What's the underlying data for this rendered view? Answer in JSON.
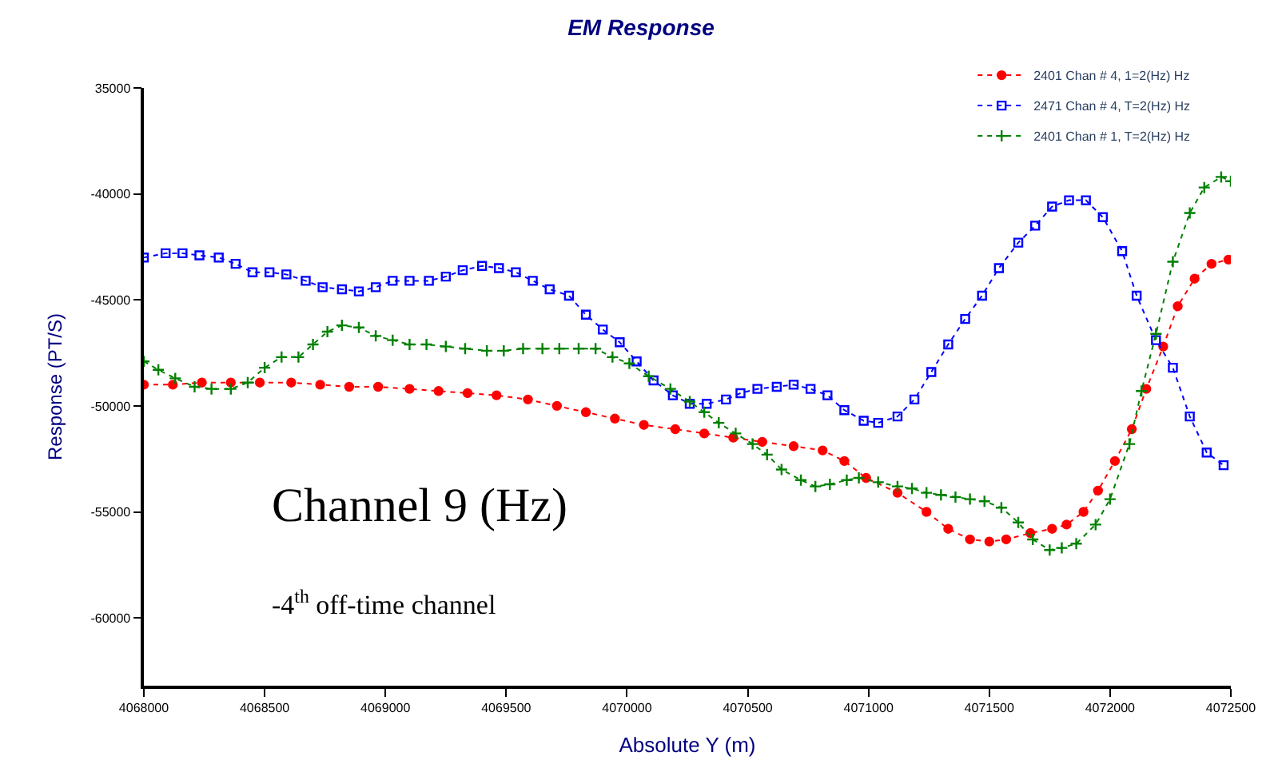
{
  "chart_data": {
    "type": "line",
    "title": "EM Response",
    "xlabel": "Absolute Y (m)",
    "ylabel": "Response (PT/S)",
    "xlim": [
      4068000,
      4072500
    ],
    "xticks": [
      4068000,
      4068500,
      4069000,
      4069500,
      4070000,
      4070500,
      4071000,
      4071500,
      4072000,
      4072500
    ],
    "ylim": [
      -63200,
      -35000
    ],
    "yticks": [
      {
        "value": -35000,
        "label": "35000"
      },
      -40000,
      -45000,
      -50000,
      -55000,
      -60000
    ],
    "legend": "top right",
    "line_style": "dotted",
    "annotations": [
      "Channel 9 (Hz)",
      "-4$^{th}$ off-time channel"
    ],
    "series": [
      {
        "name": "2401 Chan # 4, 1=2(Hz) Hz",
        "color": "#ff0000",
        "marker": "circle",
        "x": [
          4068000,
          4068120,
          4068240,
          4068360,
          4068480,
          4068610,
          4068730,
          4068850,
          4068970,
          4069100,
          4069220,
          4069340,
          4069460,
          4069590,
          4069710,
          4069830,
          4069950,
          4070070,
          4070200,
          4070320,
          4070440,
          4070560,
          4070690,
          4070810,
          4070900,
          4070990,
          4071120,
          4071240,
          4071330,
          4071420,
          4071500,
          4071570,
          4071670,
          4071760,
          4071820,
          4071890,
          4071950,
          4072020,
          4072090,
          4072150,
          4072220,
          4072280,
          4072350,
          4072420,
          4072490
        ],
        "values": [
          -49000,
          -49000,
          -48900,
          -48900,
          -48900,
          -48900,
          -49000,
          -49100,
          -49100,
          -49200,
          -49300,
          -49400,
          -49500,
          -49700,
          -50000,
          -50300,
          -50600,
          -50900,
          -51100,
          -51300,
          -51500,
          -51700,
          -51900,
          -52100,
          -52600,
          -53400,
          -54100,
          -55000,
          -55800,
          -56300,
          -56400,
          -56300,
          -56000,
          -55800,
          -55600,
          -55000,
          -54000,
          -52600,
          -51100,
          -49200,
          -47200,
          -45300,
          -44000,
          -43300,
          -43100
        ]
      },
      {
        "name": "2471 Chan # 4, T=2(Hz) Hz",
        "color": "#0000ff",
        "marker": "square",
        "x": [
          4068000,
          4068090,
          4068160,
          4068230,
          4068310,
          4068380,
          4068450,
          4068520,
          4068590,
          4068670,
          4068740,
          4068820,
          4068890,
          4068960,
          4069030,
          4069100,
          4069180,
          4069250,
          4069320,
          4069400,
          4069470,
          4069540,
          4069610,
          4069680,
          4069760,
          4069830,
          4069900,
          4069970,
          4070040,
          4070110,
          4070190,
          4070260,
          4070330,
          4070410,
          4070470,
          4070540,
          4070620,
          4070690,
          4070760,
          4070830,
          4070900,
          4070980,
          4071040,
          4071120,
          4071190,
          4071260,
          4071330,
          4071400,
          4071470,
          4071540,
          4071620,
          4071690,
          4071760,
          4071830,
          4071900,
          4071970,
          4072050,
          4072110,
          4072190,
          4072260,
          4072330,
          4072400,
          4072470
        ],
        "values": [
          -43000,
          -42800,
          -42800,
          -42900,
          -43000,
          -43300,
          -43700,
          -43700,
          -43800,
          -44100,
          -44400,
          -44500,
          -44600,
          -44400,
          -44100,
          -44100,
          -44100,
          -43900,
          -43600,
          -43400,
          -43500,
          -43700,
          -44100,
          -44500,
          -44800,
          -45700,
          -46400,
          -47000,
          -47900,
          -48800,
          -49500,
          -49900,
          -49900,
          -49700,
          -49400,
          -49200,
          -49100,
          -49000,
          -49200,
          -49500,
          -50200,
          -50700,
          -50800,
          -50500,
          -49700,
          -48400,
          -47100,
          -45900,
          -44800,
          -43500,
          -42300,
          -41500,
          -40600,
          -40300,
          -40300,
          -41100,
          -42700,
          -44800,
          -46900,
          -48200,
          -50500,
          -52200,
          -52800
        ]
      },
      {
        "name": "2401 Chan # 1, T=2(Hz) Hz",
        "color": "#008000",
        "marker": "cross",
        "x": [
          4068000,
          4068060,
          4068130,
          4068210,
          4068280,
          4068360,
          4068430,
          4068500,
          4068570,
          4068640,
          4068700,
          4068760,
          4068820,
          4068890,
          4068960,
          4069030,
          4069100,
          4069170,
          4069250,
          4069330,
          4069420,
          4069490,
          4069570,
          4069650,
          4069720,
          4069800,
          4069870,
          4069940,
          4070010,
          4070090,
          4070180,
          4070260,
          4070320,
          4070380,
          4070450,
          4070520,
          4070580,
          4070640,
          4070720,
          4070780,
          4070840,
          4070910,
          4070960,
          4071040,
          4071120,
          4071180,
          4071240,
          4071300,
          4071360,
          4071420,
          4071480,
          4071550,
          4071620,
          4071680,
          4071750,
          4071800,
          4071860,
          4071940,
          4072000,
          4072080,
          4072130,
          4072190,
          4072260,
          4072330,
          4072390,
          4072460,
          4072500
        ],
        "values": [
          -47900,
          -48300,
          -48700,
          -49100,
          -49200,
          -49200,
          -48900,
          -48200,
          -47700,
          -47700,
          -47100,
          -46500,
          -46200,
          -46300,
          -46700,
          -46900,
          -47100,
          -47100,
          -47200,
          -47300,
          -47400,
          -47400,
          -47300,
          -47300,
          -47300,
          -47300,
          -47300,
          -47700,
          -48000,
          -48600,
          -49200,
          -49800,
          -50300,
          -50800,
          -51300,
          -51800,
          -52300,
          -53000,
          -53500,
          -53800,
          -53700,
          -53500,
          -53400,
          -53600,
          -53800,
          -53900,
          -54100,
          -54200,
          -54300,
          -54400,
          -54500,
          -54800,
          -55500,
          -56300,
          -56800,
          -56700,
          -56500,
          -55600,
          -54400,
          -51800,
          -49300,
          -46600,
          -43200,
          -40900,
          -39700,
          -39200,
          -39400
        ]
      }
    ]
  }
}
